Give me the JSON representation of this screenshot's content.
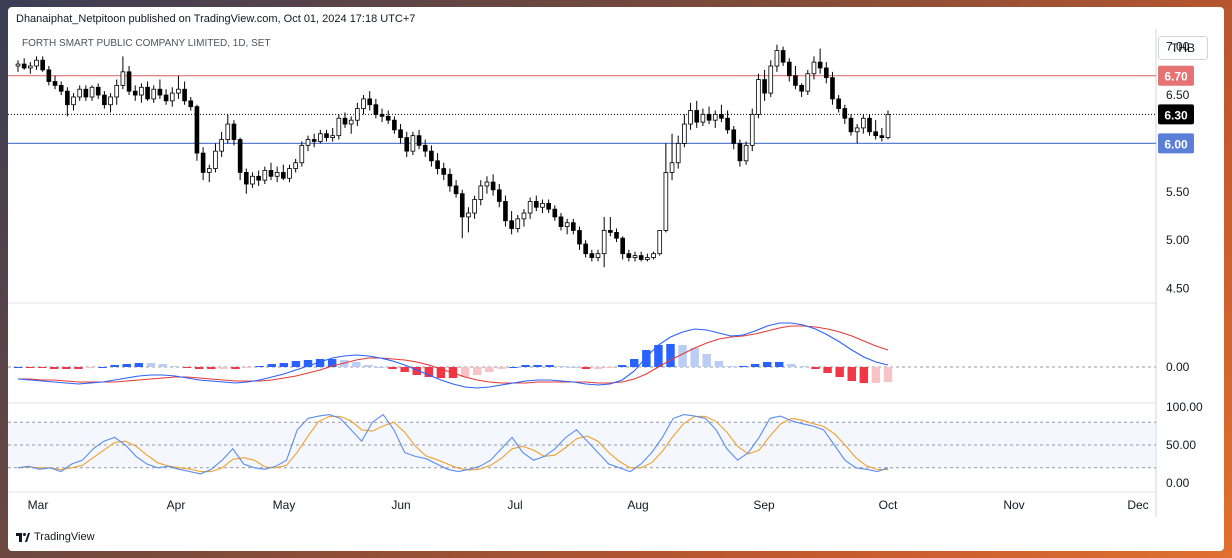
{
  "header": {
    "publish_line": "Dhanaiphat_Netpitoon published on TradingView.com, Oct 01, 2024 17:18 UTC+7",
    "symbol_line": "FORTH SMART PUBLIC COMPANY LIMITED, 1D, SET",
    "currency": "THB"
  },
  "footer": {
    "brand": "TradingView"
  },
  "colors": {
    "up": "#ffffff",
    "down": "#000000",
    "resistance": "#e57373",
    "support": "#5b7fd6",
    "last": "#000000",
    "macd": "#2962ff",
    "signal": "#e53935",
    "hist_pos_strong": "#2962ff",
    "hist_pos_weak": "#bbcdf5",
    "hist_neg_strong": "#f23645",
    "hist_neg_weak": "#f7c3c7",
    "stoch_k": "#5b8def",
    "stoch_d": "#f0a030"
  },
  "chart_data": [
    {
      "type": "candlestick",
      "title": "FORTH SMART PUBLIC COMPANY LIMITED, 1D, SET",
      "ylim": [
        4.35,
        7.1
      ],
      "y_ticks": [
        "7.00",
        "6.50",
        "5.50",
        "5.00",
        "4.50"
      ],
      "x_labels": [
        "Mar",
        "Apr",
        "May",
        "Jun",
        "Jul",
        "Aug",
        "Sep",
        "Oct",
        "Nov",
        "Dec"
      ],
      "levels": [
        {
          "label": "6.70",
          "value": 6.7,
          "role": "resistance"
        },
        {
          "label": "6.30",
          "value": 6.3,
          "role": "last"
        },
        {
          "label": "6.00",
          "value": 6.0,
          "role": "support"
        }
      ],
      "candles": [
        [
          6.8,
          6.86,
          6.74,
          6.82
        ],
        [
          6.82,
          6.88,
          6.76,
          6.78
        ],
        [
          6.78,
          6.84,
          6.72,
          6.8
        ],
        [
          6.8,
          6.9,
          6.76,
          6.86
        ],
        [
          6.86,
          6.9,
          6.74,
          6.76
        ],
        [
          6.76,
          6.8,
          6.6,
          6.64
        ],
        [
          6.64,
          6.7,
          6.56,
          6.6
        ],
        [
          6.6,
          6.64,
          6.5,
          6.54
        ],
        [
          6.54,
          6.58,
          6.28,
          6.4
        ],
        [
          6.4,
          6.52,
          6.34,
          6.48
        ],
        [
          6.48,
          6.6,
          6.44,
          6.56
        ],
        [
          6.56,
          6.6,
          6.44,
          6.48
        ],
        [
          6.48,
          6.6,
          6.44,
          6.58
        ],
        [
          6.58,
          6.62,
          6.46,
          6.5
        ],
        [
          6.5,
          6.54,
          6.36,
          6.4
        ],
        [
          6.4,
          6.52,
          6.32,
          6.48
        ],
        [
          6.48,
          6.66,
          6.4,
          6.6
        ],
        [
          6.6,
          6.9,
          6.56,
          6.74
        ],
        [
          6.74,
          6.8,
          6.5,
          6.54
        ],
        [
          6.54,
          6.6,
          6.44,
          6.5
        ],
        [
          6.5,
          6.62,
          6.42,
          6.58
        ],
        [
          6.58,
          6.64,
          6.44,
          6.46
        ],
        [
          6.46,
          6.6,
          6.42,
          6.56
        ],
        [
          6.56,
          6.66,
          6.46,
          6.5
        ],
        [
          6.5,
          6.56,
          6.4,
          6.44
        ],
        [
          6.44,
          6.58,
          6.38,
          6.52
        ],
        [
          6.52,
          6.7,
          6.46,
          6.56
        ],
        [
          6.56,
          6.64,
          6.4,
          6.44
        ],
        [
          6.44,
          6.48,
          6.34,
          6.38
        ],
        [
          6.38,
          6.4,
          5.82,
          5.9
        ],
        [
          5.9,
          5.96,
          5.62,
          5.7
        ],
        [
          5.7,
          5.78,
          5.6,
          5.74
        ],
        [
          5.74,
          6.0,
          5.7,
          5.92
        ],
        [
          5.92,
          6.12,
          5.86,
          6.04
        ],
        [
          6.04,
          6.3,
          6.0,
          6.2
        ],
        [
          6.2,
          6.24,
          5.98,
          6.04
        ],
        [
          6.04,
          6.06,
          5.62,
          5.7
        ],
        [
          5.7,
          5.74,
          5.48,
          5.58
        ],
        [
          5.58,
          5.7,
          5.54,
          5.66
        ],
        [
          5.66,
          5.72,
          5.56,
          5.62
        ],
        [
          5.62,
          5.76,
          5.58,
          5.72
        ],
        [
          5.72,
          5.8,
          5.62,
          5.66
        ],
        [
          5.66,
          5.76,
          5.6,
          5.7
        ],
        [
          5.7,
          5.78,
          5.62,
          5.64
        ],
        [
          5.64,
          5.78,
          5.6,
          5.74
        ],
        [
          5.74,
          5.84,
          5.7,
          5.8
        ],
        [
          5.8,
          6.02,
          5.76,
          5.98
        ],
        [
          5.98,
          6.08,
          5.92,
          6.04
        ],
        [
          6.04,
          6.1,
          5.96,
          6.02
        ],
        [
          6.02,
          6.14,
          6.0,
          6.1
        ],
        [
          6.1,
          6.14,
          6.02,
          6.06
        ],
        [
          6.06,
          6.16,
          6.02,
          6.08
        ],
        [
          6.08,
          6.3,
          6.04,
          6.26
        ],
        [
          6.26,
          6.32,
          6.16,
          6.2
        ],
        [
          6.2,
          6.28,
          6.1,
          6.24
        ],
        [
          6.24,
          6.42,
          6.18,
          6.36
        ],
        [
          6.36,
          6.5,
          6.3,
          6.46
        ],
        [
          6.46,
          6.54,
          6.34,
          6.4
        ],
        [
          6.4,
          6.46,
          6.26,
          6.3
        ],
        [
          6.3,
          6.36,
          6.22,
          6.28
        ],
        [
          6.28,
          6.34,
          6.2,
          6.24
        ],
        [
          6.24,
          6.28,
          6.1,
          6.14
        ],
        [
          6.14,
          6.2,
          6.0,
          6.06
        ],
        [
          6.06,
          6.12,
          5.86,
          5.92
        ],
        [
          5.92,
          6.12,
          5.88,
          6.08
        ],
        [
          6.08,
          6.14,
          5.94,
          5.98
        ],
        [
          5.98,
          6.04,
          5.86,
          5.92
        ],
        [
          5.92,
          5.98,
          5.76,
          5.82
        ],
        [
          5.82,
          5.9,
          5.68,
          5.74
        ],
        [
          5.74,
          5.8,
          5.62,
          5.68
        ],
        [
          5.68,
          5.74,
          5.5,
          5.56
        ],
        [
          5.56,
          5.62,
          5.44,
          5.48
        ],
        [
          5.48,
          5.52,
          5.02,
          5.24
        ],
        [
          5.24,
          5.34,
          5.08,
          5.28
        ],
        [
          5.28,
          5.46,
          5.22,
          5.42
        ],
        [
          5.42,
          5.62,
          5.36,
          5.56
        ],
        [
          5.56,
          5.66,
          5.48,
          5.6
        ],
        [
          5.6,
          5.68,
          5.46,
          5.52
        ],
        [
          5.52,
          5.58,
          5.34,
          5.4
        ],
        [
          5.4,
          5.46,
          5.14,
          5.2
        ],
        [
          5.2,
          5.3,
          5.06,
          5.12
        ],
        [
          5.12,
          5.26,
          5.08,
          5.22
        ],
        [
          5.22,
          5.32,
          5.14,
          5.28
        ],
        [
          5.28,
          5.44,
          5.22,
          5.4
        ],
        [
          5.4,
          5.46,
          5.3,
          5.34
        ],
        [
          5.34,
          5.42,
          5.28,
          5.38
        ],
        [
          5.38,
          5.42,
          5.28,
          5.32
        ],
        [
          5.32,
          5.36,
          5.2,
          5.24
        ],
        [
          5.24,
          5.28,
          5.1,
          5.14
        ],
        [
          5.14,
          5.22,
          5.06,
          5.18
        ],
        [
          5.18,
          5.22,
          5.06,
          5.1
        ],
        [
          5.1,
          5.14,
          4.9,
          4.96
        ],
        [
          4.96,
          5.0,
          4.82,
          4.86
        ],
        [
          4.86,
          4.9,
          4.78,
          4.82
        ],
        [
          4.82,
          4.9,
          4.78,
          4.86
        ],
        [
          4.86,
          5.24,
          4.72,
          5.1
        ],
        [
          5.1,
          5.24,
          5.04,
          5.08
        ],
        [
          5.08,
          5.12,
          4.98,
          5.02
        ],
        [
          5.02,
          5.04,
          4.8,
          4.86
        ],
        [
          4.86,
          4.9,
          4.78,
          4.82
        ],
        [
          4.82,
          4.88,
          4.78,
          4.84
        ],
        [
          4.84,
          4.88,
          4.78,
          4.8
        ],
        [
          4.8,
          4.86,
          4.78,
          4.82
        ],
        [
          4.82,
          4.88,
          4.8,
          4.86
        ],
        [
          4.86,
          5.1,
          4.84,
          5.1
        ],
        [
          5.1,
          6.0,
          5.08,
          5.7
        ],
        [
          5.7,
          6.1,
          5.62,
          5.8
        ],
        [
          5.8,
          6.08,
          5.74,
          6.0
        ],
        [
          6.0,
          6.3,
          5.96,
          6.2
        ],
        [
          6.2,
          6.42,
          6.14,
          6.34
        ],
        [
          6.34,
          6.44,
          6.16,
          6.22
        ],
        [
          6.22,
          6.36,
          6.18,
          6.3
        ],
        [
          6.3,
          6.38,
          6.2,
          6.24
        ],
        [
          6.24,
          6.34,
          6.16,
          6.3
        ],
        [
          6.3,
          6.4,
          6.22,
          6.26
        ],
        [
          6.26,
          6.34,
          6.1,
          6.14
        ],
        [
          6.14,
          6.18,
          5.94,
          6.0
        ],
        [
          6.0,
          6.04,
          5.76,
          5.82
        ],
        [
          5.82,
          6.02,
          5.78,
          5.98
        ],
        [
          5.98,
          6.36,
          5.92,
          6.3
        ],
        [
          6.3,
          6.72,
          6.26,
          6.66
        ],
        [
          6.66,
          6.76,
          6.44,
          6.52
        ],
        [
          6.52,
          6.86,
          6.48,
          6.8
        ],
        [
          6.8,
          7.02,
          6.74,
          6.96
        ],
        [
          6.96,
          7.0,
          6.8,
          6.84
        ],
        [
          6.84,
          6.88,
          6.64,
          6.7
        ],
        [
          6.7,
          6.8,
          6.56,
          6.6
        ],
        [
          6.6,
          6.62,
          6.48,
          6.54
        ],
        [
          6.54,
          6.76,
          6.5,
          6.72
        ],
        [
          6.72,
          6.9,
          6.66,
          6.84
        ],
        [
          6.84,
          6.98,
          6.72,
          6.78
        ],
        [
          6.78,
          6.84,
          6.62,
          6.68
        ],
        [
          6.68,
          6.74,
          6.4,
          6.46
        ],
        [
          6.46,
          6.5,
          6.32,
          6.36
        ],
        [
          6.36,
          6.4,
          6.2,
          6.26
        ],
        [
          6.26,
          6.3,
          6.08,
          6.12
        ],
        [
          6.12,
          6.2,
          6.0,
          6.16
        ],
        [
          6.16,
          6.3,
          6.1,
          6.26
        ],
        [
          6.26,
          6.3,
          6.08,
          6.12
        ],
        [
          6.12,
          6.24,
          6.04,
          6.08
        ],
        [
          6.08,
          6.16,
          6.02,
          6.06
        ],
        [
          6.06,
          6.34,
          6.04,
          6.3
        ]
      ]
    },
    {
      "type": "macd",
      "zero_label": "0.00",
      "macd": [
        -0.12,
        -0.13,
        -0.14,
        -0.15,
        -0.16,
        -0.17,
        -0.16,
        -0.15,
        -0.13,
        -0.11,
        -0.09,
        -0.08,
        -0.08,
        -0.09,
        -0.11,
        -0.13,
        -0.14,
        -0.15,
        -0.16,
        -0.15,
        -0.13,
        -0.1,
        -0.07,
        -0.03,
        0.01,
        0.05,
        0.09,
        0.11,
        0.12,
        0.11,
        0.09,
        0.06,
        0.02,
        -0.03,
        -0.08,
        -0.13,
        -0.17,
        -0.2,
        -0.21,
        -0.2,
        -0.18,
        -0.16,
        -0.14,
        -0.13,
        -0.13,
        -0.14,
        -0.15,
        -0.17,
        -0.18,
        -0.17,
        -0.13,
        -0.04,
        0.1,
        0.22,
        0.3,
        0.35,
        0.38,
        0.37,
        0.34,
        0.31,
        0.32,
        0.36,
        0.41,
        0.44,
        0.44,
        0.42,
        0.38,
        0.32,
        0.25,
        0.17,
        0.1,
        0.05,
        0.02
      ],
      "signal": [
        -0.12,
        -0.12,
        -0.13,
        -0.13,
        -0.14,
        -0.15,
        -0.15,
        -0.15,
        -0.15,
        -0.14,
        -0.13,
        -0.12,
        -0.11,
        -0.1,
        -0.1,
        -0.11,
        -0.12,
        -0.13,
        -0.14,
        -0.14,
        -0.14,
        -0.13,
        -0.11,
        -0.09,
        -0.06,
        -0.03,
        0.01,
        0.04,
        0.07,
        0.09,
        0.09,
        0.08,
        0.07,
        0.05,
        0.02,
        -0.02,
        -0.06,
        -0.1,
        -0.13,
        -0.15,
        -0.16,
        -0.16,
        -0.16,
        -0.15,
        -0.15,
        -0.15,
        -0.15,
        -0.15,
        -0.16,
        -0.16,
        -0.15,
        -0.12,
        -0.07,
        0.0,
        0.07,
        0.13,
        0.19,
        0.24,
        0.28,
        0.3,
        0.31,
        0.33,
        0.36,
        0.39,
        0.41,
        0.41,
        0.4,
        0.38,
        0.35,
        0.31,
        0.26,
        0.21,
        0.17
      ]
    },
    {
      "type": "stochastic",
      "y_ticks": [
        "100.00",
        "50.00",
        "0.00"
      ],
      "levels": [
        80,
        50,
        20
      ],
      "k": [
        20,
        22,
        18,
        20,
        15,
        25,
        30,
        45,
        55,
        60,
        50,
        35,
        25,
        20,
        22,
        18,
        15,
        12,
        18,
        30,
        45,
        25,
        20,
        18,
        22,
        30,
        70,
        85,
        88,
        90,
        85,
        70,
        55,
        80,
        90,
        70,
        40,
        35,
        32,
        25,
        18,
        15,
        18,
        22,
        30,
        45,
        60,
        40,
        30,
        35,
        45,
        60,
        70,
        55,
        40,
        25,
        20,
        15,
        25,
        40,
        60,
        85,
        90,
        88,
        85,
        70,
        45,
        30,
        40,
        60,
        85,
        88,
        82,
        78,
        75,
        70,
        50,
        30,
        20,
        18,
        15,
        20
      ]
    }
  ]
}
